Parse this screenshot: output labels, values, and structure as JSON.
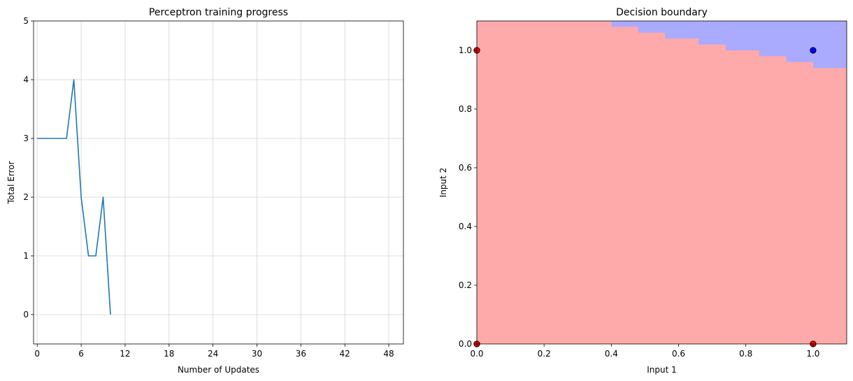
{
  "chart_data": [
    {
      "type": "line",
      "title": "Perceptron training progress",
      "xlabel": "Number of Updates",
      "ylabel": "Total Error",
      "xlim": [
        -0.5,
        50
      ],
      "ylim": [
        -0.5,
        5
      ],
      "xticks": [
        0,
        6,
        12,
        18,
        24,
        30,
        36,
        42,
        48
      ],
      "yticks": [
        0,
        1,
        2,
        3,
        4,
        5
      ],
      "grid": true,
      "line_color": "#1f77b4",
      "series": [
        {
          "x": [
            0,
            1,
            2,
            3,
            4,
            5,
            6,
            7,
            8,
            9,
            10
          ],
          "values": [
            3,
            3,
            3,
            3,
            3,
            4,
            2,
            1,
            1,
            2,
            0
          ]
        }
      ]
    },
    {
      "type": "heatmap",
      "title": "Decision boundary",
      "xlabel": "Input 1",
      "ylabel": "Input 2",
      "xlim": [
        0,
        1.1
      ],
      "ylim": [
        0,
        1.1
      ],
      "xticks": [
        0.0,
        0.2,
        0.4,
        0.6,
        0.8,
        1.0
      ],
      "yticks": [
        0.0,
        0.2,
        0.4,
        0.6,
        0.8,
        1.0
      ],
      "grid": false,
      "region_colors": {
        "class_0": "#ffaaaa",
        "class_1": "#aaaaff"
      },
      "point_colors": {
        "class_0": "#ff0000",
        "class_1": "#0000ff"
      },
      "boundary_line": {
        "x": [
          0.0,
          1.1
        ],
        "y": [
          1.167,
          0.917
        ]
      },
      "points": [
        {
          "x": 0,
          "y": 0,
          "label": 0
        },
        {
          "x": 0,
          "y": 1,
          "label": 0
        },
        {
          "x": 1,
          "y": 0,
          "label": 0
        },
        {
          "x": 1,
          "y": 1,
          "label": 1
        }
      ]
    }
  ]
}
